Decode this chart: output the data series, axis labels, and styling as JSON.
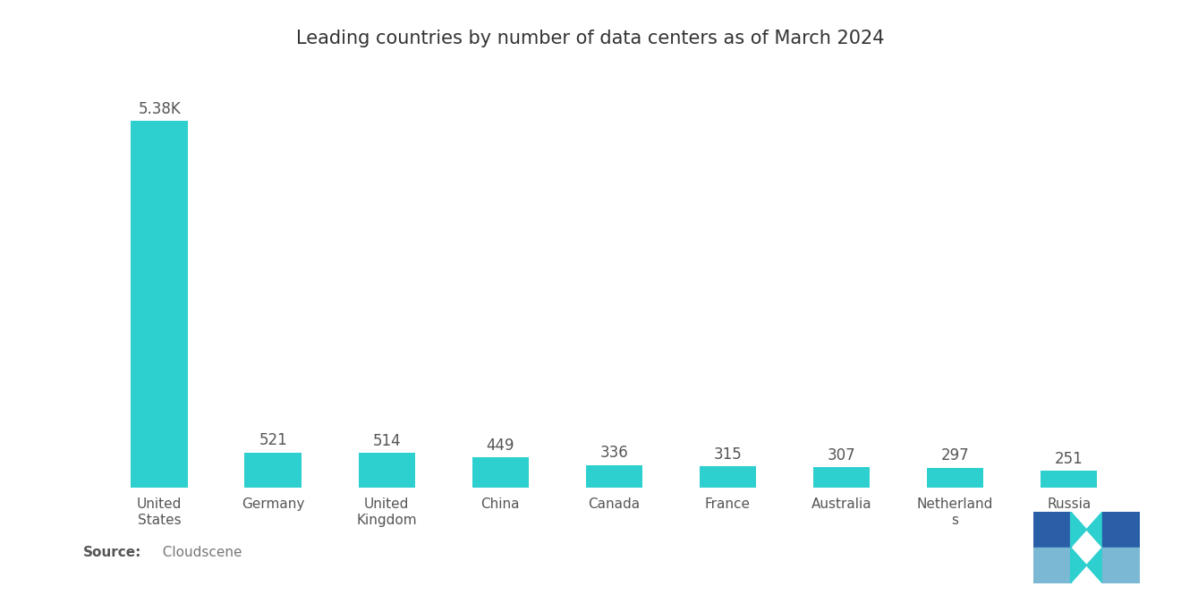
{
  "title": "Leading countries by number of data centers as of March 2024",
  "categories": [
    "United\nStates",
    "Germany",
    "United\nKingdom",
    "China",
    "Canada",
    "France",
    "Australia",
    "Netherland\ns",
    "Russia"
  ],
  "values": [
    5380,
    521,
    514,
    449,
    336,
    315,
    307,
    297,
    251
  ],
  "labels": [
    "5.38K",
    "521",
    "514",
    "449",
    "336",
    "315",
    "307",
    "297",
    "251"
  ],
  "bar_color": "#2ecfcf",
  "background_color": "#ffffff",
  "source_label": "Source:",
  "source_value": "  Cloudscene",
  "title_fontsize": 15,
  "label_fontsize": 12,
  "tick_fontsize": 11,
  "logo_blue": "#2a5fa8",
  "logo_teal": "#2ecfcf",
  "logo_light_blue": "#7ab8d4"
}
